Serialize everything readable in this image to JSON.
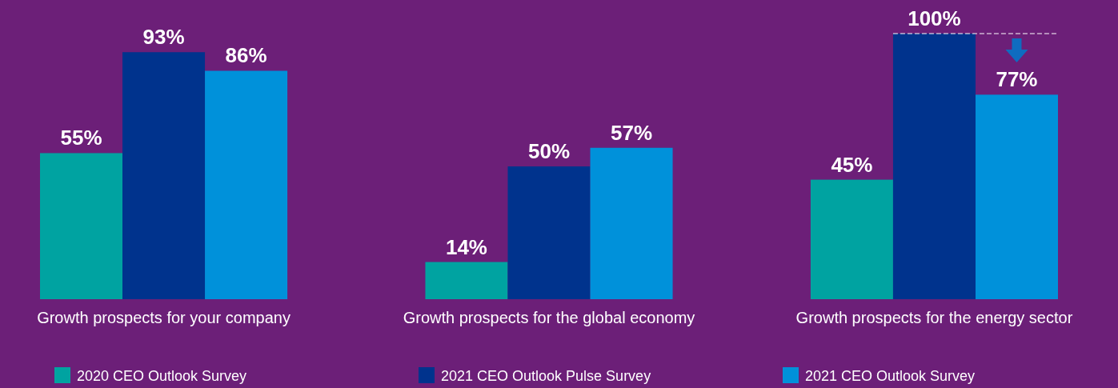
{
  "chart_data": {
    "type": "bar",
    "categories": [
      "Growth prospects for your company",
      "Growth prospects for the global economy",
      "Growth prospects for the energy sector"
    ],
    "series": [
      {
        "name": "2020 CEO Outlook Survey",
        "color": "#00a3a1",
        "values": [
          55,
          14,
          45
        ],
        "value_labels": [
          "55%",
          "14%",
          "45%"
        ]
      },
      {
        "name": "2021 CEO Outlook Pulse Survey",
        "color": "#00338d",
        "values": [
          93,
          50,
          100
        ],
        "value_labels": [
          "93%",
          "50%",
          "100%"
        ]
      },
      {
        "name": "2021 CEO Outlook Survey",
        "color": "#0091da",
        "values": [
          86,
          57,
          77
        ],
        "value_labels": [
          "86%",
          "57%",
          "77%"
        ]
      }
    ],
    "legend": "bottom",
    "grid": false
  }
}
